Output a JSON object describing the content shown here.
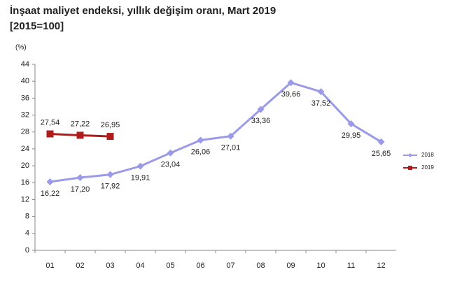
{
  "chart_data": {
    "type": "line",
    "title": "İnşaat maliyet endeksi, yıllık değişim oranı, Mart 2019",
    "subtitle": "[2015=100]",
    "y_label": "(%)",
    "categories": [
      "01",
      "02",
      "03",
      "04",
      "05",
      "06",
      "07",
      "08",
      "09",
      "10",
      "11",
      "12"
    ],
    "series": [
      {
        "name": "2018",
        "color": "#9a9ae8",
        "marker": "diamond",
        "values": [
          16.22,
          17.2,
          17.92,
          19.91,
          23.04,
          26.06,
          27.01,
          33.36,
          39.66,
          37.52,
          29.95,
          25.65
        ],
        "value_labels": [
          "16,22",
          "17,20",
          "17,92",
          "19,91",
          "23,04",
          "26,06",
          "27,01",
          "33,36",
          "39,66",
          "37,52",
          "29,95",
          "25,65"
        ]
      },
      {
        "name": "2019",
        "color": "#b01c1c",
        "marker": "square",
        "values": [
          27.54,
          27.22,
          26.95,
          null,
          null,
          null,
          null,
          null,
          null,
          null,
          null,
          null
        ],
        "value_labels": [
          "27,54",
          "27,22",
          "26,95",
          null,
          null,
          null,
          null,
          null,
          null,
          null,
          null,
          null
        ]
      }
    ],
    "ylim": [
      0,
      44
    ],
    "yticks": [
      0,
      4,
      8,
      12,
      16,
      20,
      24,
      28,
      32,
      36,
      40,
      44
    ],
    "grid": false,
    "legend": "right"
  }
}
